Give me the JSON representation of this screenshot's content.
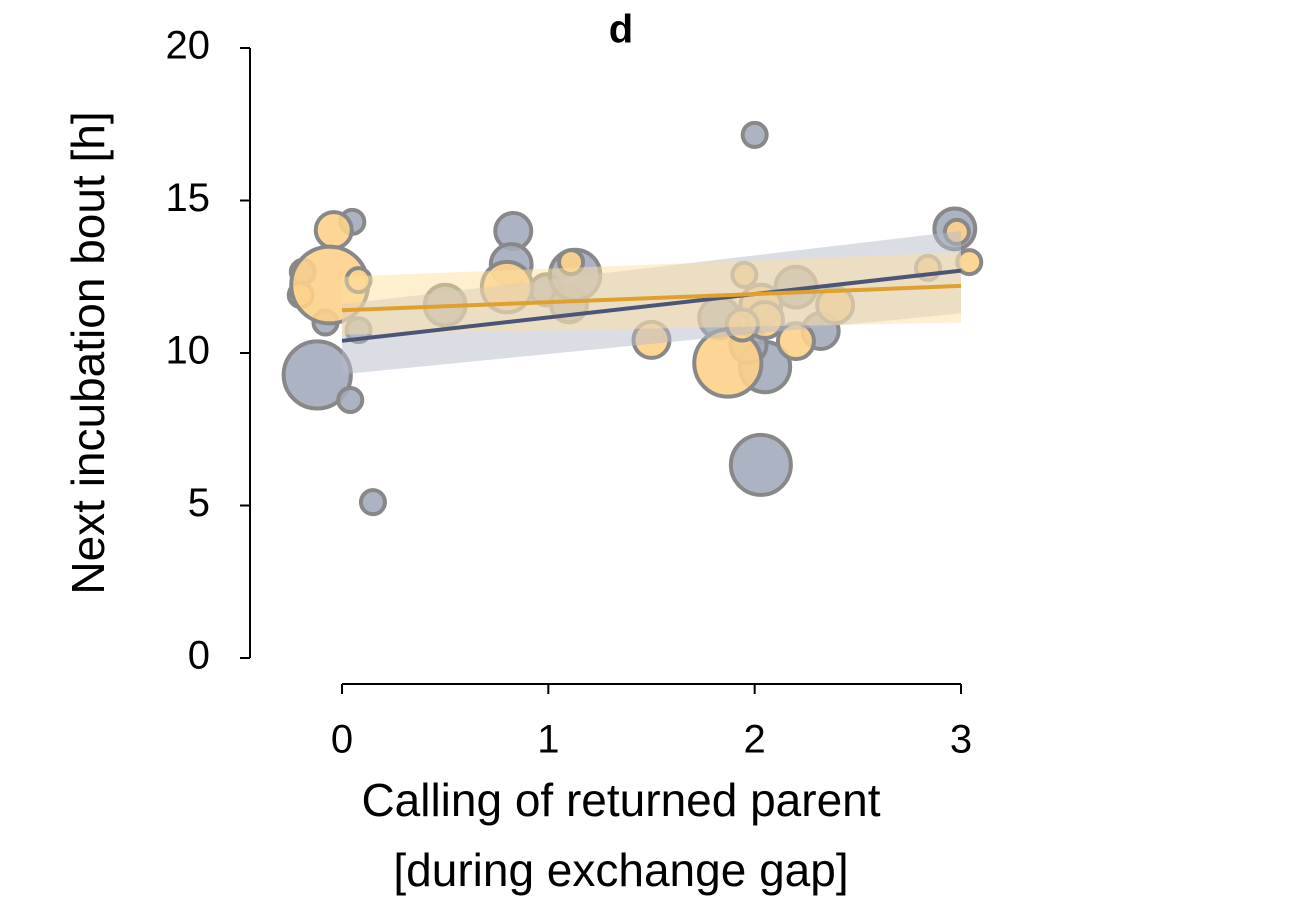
{
  "chart_data": {
    "type": "bubble",
    "title": "d",
    "ylabel": "Next incubation bout [h]",
    "xlabel": [
      "Calling of returned parent",
      "[during exchange gap]"
    ],
    "xlim": [
      0,
      3
    ],
    "xticks": [
      0,
      1,
      2,
      3
    ],
    "ylim": [
      0,
      20
    ],
    "yticks": [
      0,
      5,
      10,
      15,
      20
    ],
    "grid": false,
    "series": [
      {
        "color": "#a3abbd",
        "line_color": "#4a5577",
        "band_color": "#b8bccc",
        "x": [
          0.05,
          -0.19,
          0.83,
          0.82,
          0.99,
          1.1,
          1.13,
          0.5,
          -0.08,
          0.08,
          -0.12,
          0.04,
          0.15,
          2.0,
          1.83,
          2.03,
          2.05,
          2.2,
          2.32,
          2.97,
          1.97
        ],
        "values": [
          14.3,
          12.66,
          14.0,
          12.9,
          12.07,
          11.6,
          12.56,
          11.57,
          11.0,
          10.75,
          9.28,
          8.46,
          5.11,
          17.15,
          11.15,
          6.33,
          9.54,
          12.16,
          10.72,
          14.07,
          10.26
        ],
        "sizes": [
          1,
          1,
          1.5,
          1.7,
          1.3,
          1.5,
          2.1,
          1.7,
          1,
          1,
          2.8,
          1,
          1,
          1,
          1.7,
          2.5,
          2.1,
          1.7,
          1.5,
          1.7,
          1.5
        ],
        "fit": {
          "x": [
            0,
            3
          ],
          "values": [
            10.4,
            12.7
          ],
          "lower": [
            9.3,
            11.3
          ],
          "upper": [
            11.6,
            14.0
          ]
        }
      },
      {
        "color": "#fdd28a",
        "line_color": "#e0a030",
        "band_color": "#fde0a0",
        "x": [
          -0.04,
          -0.2,
          -0.06,
          0.08,
          0.8,
          1.11,
          1.5,
          1.95,
          2.03,
          2.05,
          1.87,
          2.2,
          2.39,
          2.84,
          2.98,
          3.04,
          1.94
        ],
        "values": [
          14.03,
          11.9,
          12.23,
          12.39,
          12.16,
          12.98,
          10.43,
          12.56,
          11.57,
          11.08,
          9.67,
          10.39,
          11.57,
          12.79,
          13.97,
          12.98,
          10.92
        ],
        "sizes": [
          1.5,
          1,
          3.2,
          1,
          2.1,
          1,
          1.5,
          1,
          1.7,
          1.5,
          2.8,
          1.5,
          1.5,
          1,
          1,
          1,
          1.3
        ],
        "fit": {
          "x": [
            0,
            3
          ],
          "values": [
            11.4,
            12.2
          ],
          "lower": [
            10.6,
            11.0
          ],
          "upper": [
            12.5,
            13.3
          ]
        }
      }
    ]
  }
}
